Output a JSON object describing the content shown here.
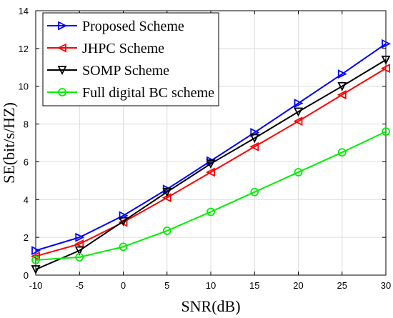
{
  "chart_data": {
    "type": "line",
    "xlabel": "SNR(dB)",
    "ylabel": "SE(bit/s/HZ)",
    "xlim": [
      -10,
      30
    ],
    "ylim": [
      0,
      14
    ],
    "xticks": [
      -10,
      -5,
      0,
      5,
      10,
      15,
      20,
      25,
      30
    ],
    "yticks": [
      0,
      2,
      4,
      6,
      8,
      10,
      12,
      14
    ],
    "grid": true,
    "legend_position": "top-left",
    "x": [
      -10,
      -5,
      0,
      5,
      10,
      15,
      20,
      25,
      30
    ],
    "series": [
      {
        "name": "Proposed Scheme",
        "color": "#0000ff",
        "marker": "triangle-right",
        "values": [
          1.3,
          2.0,
          3.15,
          4.55,
          6.05,
          7.55,
          9.1,
          10.65,
          12.25
        ]
      },
      {
        "name": "JHPC Scheme",
        "color": "#ff0000",
        "marker": "triangle-left",
        "values": [
          1.0,
          1.65,
          2.8,
          4.1,
          5.45,
          6.8,
          8.15,
          9.55,
          10.95
        ]
      },
      {
        "name": "SOMP Scheme",
        "color": "#000000",
        "marker": "triangle-down",
        "values": [
          0.3,
          1.3,
          2.85,
          4.4,
          5.9,
          7.25,
          8.65,
          10.0,
          11.4
        ]
      },
      {
        "name": "Full digital BC scheme",
        "color": "#00ee00",
        "marker": "circle",
        "values": [
          0.8,
          0.95,
          1.5,
          2.35,
          3.35,
          4.4,
          5.45,
          6.5,
          7.6
        ]
      }
    ]
  }
}
